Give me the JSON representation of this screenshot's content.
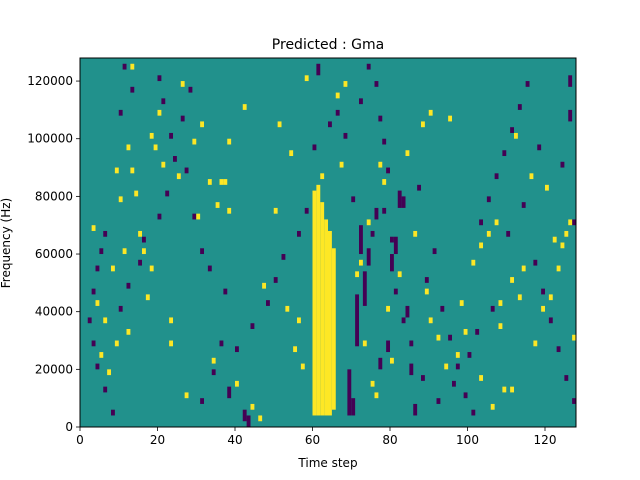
{
  "chart_data": {
    "type": "heatmap",
    "title": "Predicted : Gma",
    "xlabel": "Time step",
    "ylabel": "Frequency (Hz)",
    "xlim": [
      0,
      128
    ],
    "ylim": [
      0,
      128000
    ],
    "xticks": [
      0,
      20,
      40,
      60,
      80,
      100,
      120
    ],
    "yticks": [
      0,
      20000,
      40000,
      60000,
      80000,
      100000,
      120000
    ],
    "background_color": "#21918c",
    "high_color": "#fde725",
    "low_color": "#440154",
    "grid": false,
    "legend": "none",
    "cell_height_hz": 2000,
    "high_cells": [
      [
        60,
        4000,
        82000
      ],
      [
        61,
        4000,
        84000
      ],
      [
        62,
        4000,
        78000
      ],
      [
        63,
        4000,
        72000
      ],
      [
        64,
        4000,
        68000
      ],
      [
        65,
        6000,
        62000
      ],
      [
        62,
        86000,
        88000
      ],
      [
        13,
        124000,
        126000
      ],
      [
        37,
        84000,
        86000
      ],
      [
        36,
        84000,
        86000
      ],
      [
        35,
        76000,
        78000
      ],
      [
        38,
        74000,
        76000
      ],
      [
        29,
        98000,
        100000
      ],
      [
        67,
        90000,
        92000
      ],
      [
        68,
        118000,
        120000
      ],
      [
        90,
        108000,
        110000
      ],
      [
        95,
        106000,
        108000
      ],
      [
        74,
        70000,
        72000
      ],
      [
        75,
        14000,
        16000
      ],
      [
        76,
        10000,
        12000
      ],
      [
        73,
        28000,
        30000
      ],
      [
        12,
        32000,
        34000
      ],
      [
        8,
        54000,
        56000
      ],
      [
        9,
        28000,
        30000
      ],
      [
        18,
        54000,
        56000
      ],
      [
        17,
        44000,
        46000
      ],
      [
        23,
        36000,
        38000
      ],
      [
        27,
        10000,
        12000
      ],
      [
        44,
        6000,
        8000
      ],
      [
        46,
        2000,
        4000
      ],
      [
        55,
        26000,
        28000
      ],
      [
        53,
        40000,
        42000
      ],
      [
        56,
        36000,
        38000
      ],
      [
        79,
        40000,
        42000
      ],
      [
        80,
        22000,
        24000
      ],
      [
        82,
        52000,
        54000
      ],
      [
        90,
        36000,
        38000
      ],
      [
        97,
        24000,
        26000
      ],
      [
        99,
        32000,
        34000
      ],
      [
        103,
        16000,
        18000
      ],
      [
        106,
        6000,
        8000
      ],
      [
        109,
        12000,
        14000
      ],
      [
        111,
        12000,
        14000
      ],
      [
        117,
        28000,
        30000
      ],
      [
        121,
        44000,
        46000
      ],
      [
        123,
        54000,
        56000
      ],
      [
        124,
        62000,
        64000
      ],
      [
        125,
        66000,
        68000
      ],
      [
        126,
        70000,
        72000
      ],
      [
        108,
        42000,
        44000
      ],
      [
        111,
        50000,
        52000
      ],
      [
        114,
        54000,
        56000
      ],
      [
        103,
        62000,
        64000
      ],
      [
        105,
        66000,
        68000
      ],
      [
        107,
        70000,
        72000
      ],
      [
        112,
        100000,
        102000
      ],
      [
        116,
        86000,
        88000
      ],
      [
        120,
        82000,
        84000
      ],
      [
        11,
        60000,
        62000
      ],
      [
        16,
        60000,
        62000
      ],
      [
        23,
        28000,
        30000
      ],
      [
        4,
        42000,
        44000
      ],
      [
        5,
        24000,
        26000
      ],
      [
        7,
        18000,
        20000
      ],
      [
        9,
        88000,
        90000
      ],
      [
        10,
        78000,
        80000
      ],
      [
        13,
        88000,
        90000
      ],
      [
        14,
        80000,
        82000
      ],
      [
        15,
        66000,
        68000
      ],
      [
        18,
        100000,
        102000
      ],
      [
        19,
        96000,
        98000
      ],
      [
        20,
        108000,
        110000
      ],
      [
        21,
        90000,
        92000
      ],
      [
        26,
        118000,
        120000
      ],
      [
        31,
        104000,
        106000
      ],
      [
        33,
        84000,
        86000
      ],
      [
        38,
        98000,
        100000
      ],
      [
        42,
        110000,
        112000
      ],
      [
        51,
        104000,
        106000
      ],
      [
        58,
        120000,
        122000
      ],
      [
        66,
        114000,
        116000
      ],
      [
        71,
        52000,
        54000
      ],
      [
        77,
        90000,
        92000
      ],
      [
        86,
        66000,
        68000
      ],
      [
        89,
        46000,
        48000
      ],
      [
        92,
        30000,
        32000
      ],
      [
        94,
        20000,
        22000
      ],
      [
        98,
        42000,
        44000
      ],
      [
        101,
        56000,
        58000
      ],
      [
        108,
        34000,
        36000
      ],
      [
        113,
        44000,
        46000
      ],
      [
        119,
        40000,
        42000
      ],
      [
        122,
        64000,
        66000
      ],
      [
        127,
        30000,
        32000
      ],
      [
        3,
        68000,
        70000
      ],
      [
        6,
        36000,
        38000
      ],
      [
        12,
        96000,
        98000
      ],
      [
        25,
        86000,
        88000
      ],
      [
        30,
        72000,
        74000
      ],
      [
        34,
        22000,
        24000
      ],
      [
        40,
        14000,
        16000
      ],
      [
        47,
        48000,
        50000
      ],
      [
        50,
        74000,
        76000
      ],
      [
        54,
        94000,
        96000
      ],
      [
        57,
        20000,
        22000
      ],
      [
        72,
        56000,
        58000
      ],
      [
        78,
        84000,
        86000
      ],
      [
        84,
        94000,
        96000
      ],
      [
        88,
        104000,
        106000
      ]
    ],
    "low_cells": [
      [
        69,
        4000,
        20000
      ],
      [
        70,
        4000,
        10000
      ],
      [
        71,
        28000,
        46000
      ],
      [
        73,
        42000,
        54000
      ],
      [
        72,
        60000,
        70000
      ],
      [
        74,
        56000,
        62000
      ],
      [
        79,
        26000,
        30000
      ],
      [
        80,
        54000,
        60000
      ],
      [
        81,
        60000,
        66000
      ],
      [
        82,
        76000,
        82000
      ],
      [
        83,
        76000,
        80000
      ],
      [
        84,
        38000,
        42000
      ],
      [
        85,
        18000,
        22000
      ],
      [
        86,
        4000,
        8000
      ],
      [
        77,
        20000,
        24000
      ],
      [
        78,
        74000,
        76000
      ],
      [
        76,
        72000,
        76000
      ],
      [
        75,
        66000,
        68000
      ],
      [
        70,
        78000,
        80000
      ],
      [
        68,
        100000,
        102000
      ],
      [
        72,
        112000,
        114000
      ],
      [
        61,
        122000,
        126000
      ],
      [
        42,
        2000,
        6000
      ],
      [
        43,
        0,
        4000
      ],
      [
        38,
        10000,
        14000
      ],
      [
        36,
        28000,
        30000
      ],
      [
        37,
        46000,
        48000
      ],
      [
        33,
        54000,
        56000
      ],
      [
        31,
        60000,
        62000
      ],
      [
        29,
        72000,
        74000
      ],
      [
        27,
        88000,
        90000
      ],
      [
        23,
        100000,
        102000
      ],
      [
        21,
        112000,
        114000
      ],
      [
        20,
        120000,
        122000
      ],
      [
        13,
        116000,
        118000
      ],
      [
        10,
        108000,
        110000
      ],
      [
        11,
        124000,
        126000
      ],
      [
        6,
        66000,
        68000
      ],
      [
        5,
        60000,
        62000
      ],
      [
        4,
        54000,
        56000
      ],
      [
        3,
        46000,
        48000
      ],
      [
        2,
        36000,
        38000
      ],
      [
        3,
        28000,
        30000
      ],
      [
        4,
        20000,
        22000
      ],
      [
        6,
        12000,
        14000
      ],
      [
        8,
        4000,
        6000
      ],
      [
        10,
        40000,
        42000
      ],
      [
        12,
        48000,
        50000
      ],
      [
        15,
        56000,
        58000
      ],
      [
        16,
        64000,
        66000
      ],
      [
        20,
        72000,
        74000
      ],
      [
        22,
        80000,
        82000
      ],
      [
        24,
        92000,
        94000
      ],
      [
        26,
        106000,
        108000
      ],
      [
        28,
        116000,
        118000
      ],
      [
        31,
        8000,
        10000
      ],
      [
        34,
        18000,
        20000
      ],
      [
        40,
        26000,
        28000
      ],
      [
        44,
        34000,
        36000
      ],
      [
        48,
        42000,
        44000
      ],
      [
        50,
        50000,
        52000
      ],
      [
        52,
        58000,
        60000
      ],
      [
        56,
        66000,
        68000
      ],
      [
        58,
        74000,
        76000
      ],
      [
        60,
        96000,
        98000
      ],
      [
        64,
        104000,
        106000
      ],
      [
        66,
        108000,
        110000
      ],
      [
        87,
        82000,
        84000
      ],
      [
        89,
        50000,
        52000
      ],
      [
        91,
        60000,
        62000
      ],
      [
        93,
        40000,
        42000
      ],
      [
        95,
        30000,
        32000
      ],
      [
        97,
        20000,
        22000
      ],
      [
        99,
        10000,
        12000
      ],
      [
        101,
        4000,
        6000
      ],
      [
        103,
        70000,
        72000
      ],
      [
        105,
        78000,
        80000
      ],
      [
        107,
        86000,
        88000
      ],
      [
        109,
        94000,
        96000
      ],
      [
        111,
        102000,
        104000
      ],
      [
        113,
        110000,
        112000
      ],
      [
        115,
        118000,
        120000
      ],
      [
        117,
        56000,
        58000
      ],
      [
        119,
        46000,
        48000
      ],
      [
        121,
        36000,
        38000
      ],
      [
        123,
        26000,
        28000
      ],
      [
        125,
        16000,
        18000
      ],
      [
        127,
        8000,
        10000
      ],
      [
        126,
        106000,
        110000
      ],
      [
        126,
        118000,
        122000
      ],
      [
        127,
        70000,
        72000
      ],
      [
        124,
        90000,
        92000
      ],
      [
        118,
        96000,
        98000
      ],
      [
        114,
        76000,
        78000
      ],
      [
        110,
        66000,
        68000
      ],
      [
        106,
        40000,
        42000
      ],
      [
        102,
        32000,
        34000
      ],
      [
        100,
        24000,
        26000
      ],
      [
        96,
        14000,
        16000
      ],
      [
        92,
        8000,
        10000
      ],
      [
        88,
        16000,
        18000
      ],
      [
        85,
        28000,
        30000
      ],
      [
        83,
        36000,
        38000
      ],
      [
        81,
        46000,
        48000
      ],
      [
        80,
        64000,
        66000
      ],
      [
        79,
        88000,
        90000
      ],
      [
        78,
        98000,
        100000
      ],
      [
        77,
        106000,
        108000
      ],
      [
        76,
        118000,
        120000
      ],
      [
        74,
        124000,
        126000
      ]
    ]
  }
}
